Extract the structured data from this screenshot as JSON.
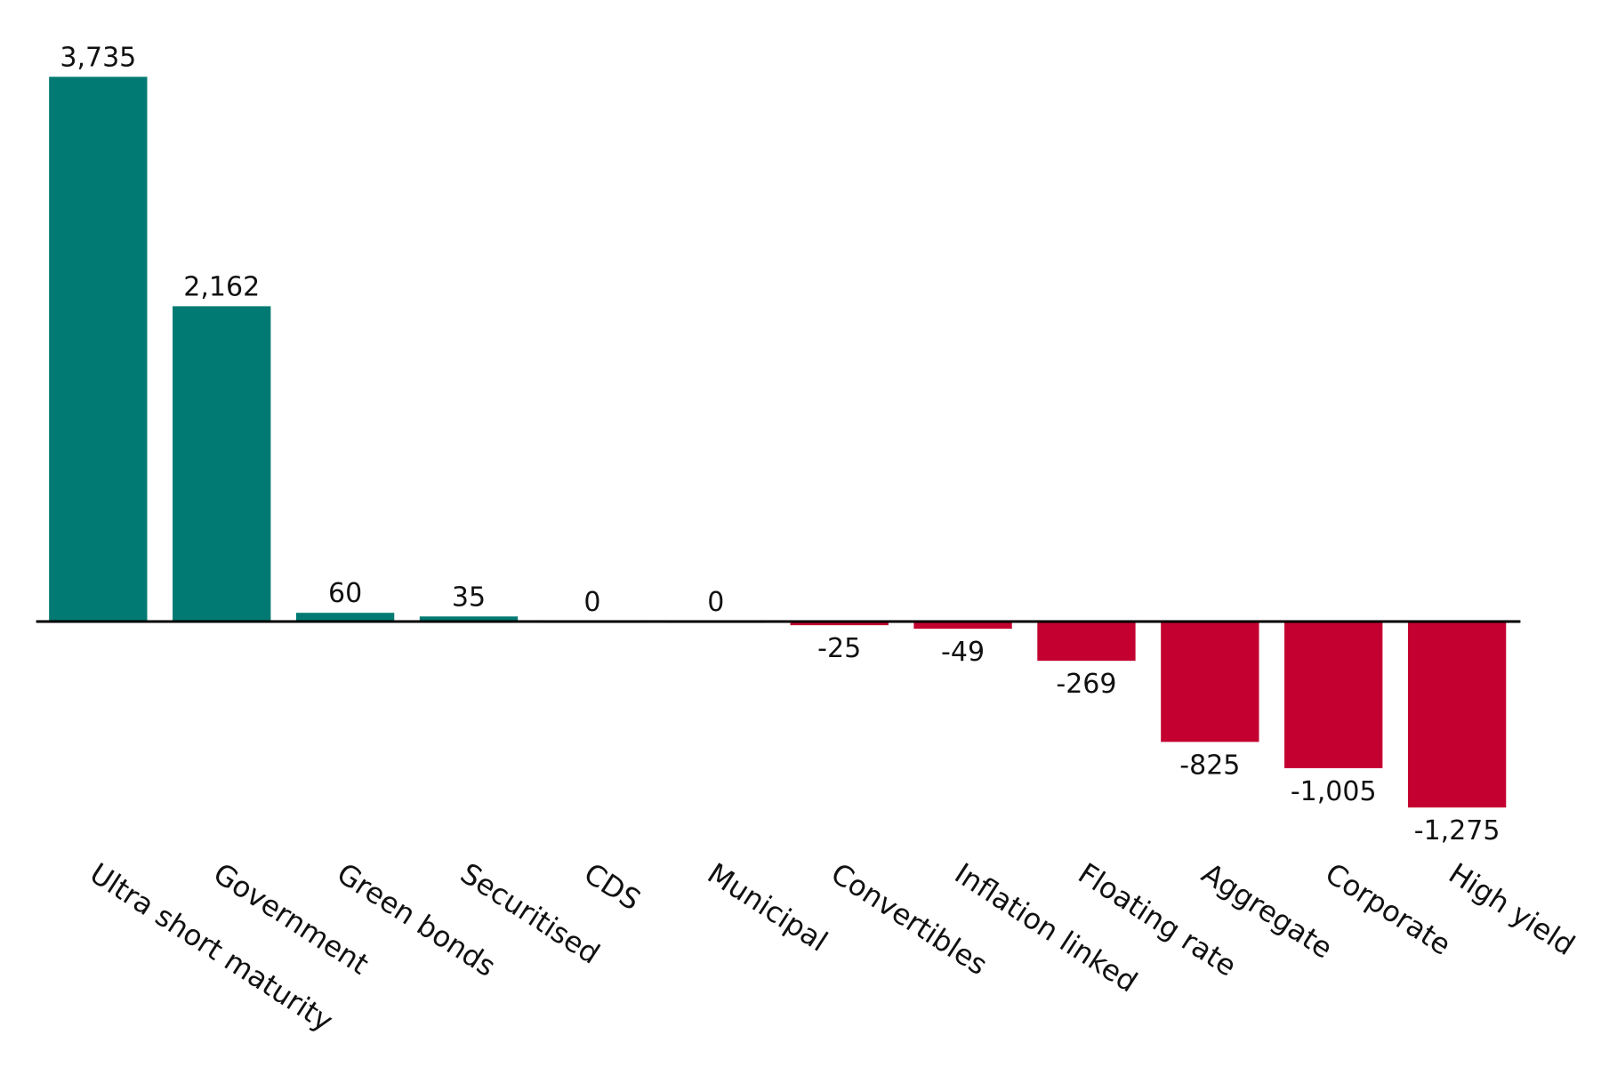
{
  "chart_data": {
    "type": "bar",
    "title": "",
    "xlabel": "",
    "ylabel": "",
    "categories": [
      "Ultra short maturity",
      "Government",
      "Green bonds",
      "Securitised",
      "CDS",
      "Municipal",
      "Convertibles",
      "Inflation linked",
      "Floating rate",
      "Aggregate",
      "Corporate",
      "High yield"
    ],
    "values": [
      3735,
      2162,
      60,
      35,
      0,
      0,
      -25,
      -49,
      -269,
      -825,
      -1005,
      -1275
    ],
    "value_labels": [
      "3,735",
      "2,162",
      "60",
      "35",
      "0",
      "0",
      "-25",
      "-49",
      "-269",
      "-825",
      "-1,005",
      "-1,275"
    ],
    "ylim": [
      -1275,
      3735
    ],
    "grid": false,
    "legend": "none",
    "colors": {
      "positive": "#007A72",
      "negative": "#C3002F",
      "axis": "#000000"
    }
  }
}
